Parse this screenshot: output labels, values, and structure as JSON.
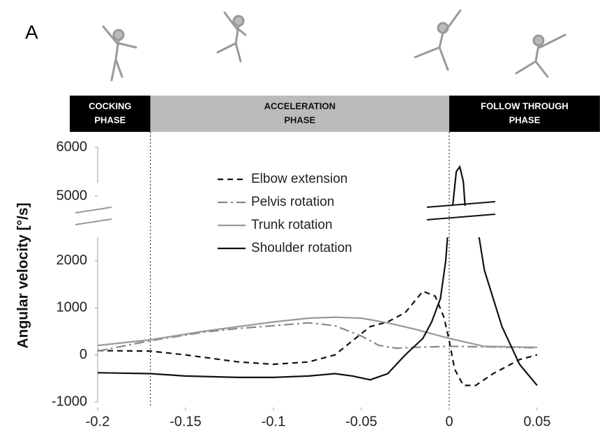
{
  "panel_label": "A",
  "phases": [
    {
      "label": [
        "COCKING",
        "PHASE"
      ],
      "color": "#000000",
      "text_color": "#ffffff"
    },
    {
      "label": [
        "ACCELERATION",
        "PHASE"
      ],
      "color": "#bbbbbb",
      "text_color": "#111111"
    },
    {
      "label": [
        "FOLLOW THROUGH",
        "PHASE"
      ],
      "color": "#000000",
      "text_color": "#ffffff"
    }
  ],
  "chart_data": {
    "type": "line",
    "y_label": "Angular velocity [°/s]",
    "xlim": [
      -0.2,
      0.05
    ],
    "xticks": [
      -0.2,
      -0.15,
      -0.1,
      -0.05,
      0,
      0.05
    ],
    "ylim": [
      -1000,
      6000
    ],
    "y_break": [
      2500,
      4700
    ],
    "yticks": [
      -1000,
      0,
      1000,
      2000,
      5000,
      6000
    ],
    "phase_boundaries": [
      -0.17,
      0
    ],
    "series": [
      {
        "name": "Elbow extension",
        "color": "#111111",
        "dash": "8,6",
        "x": [
          -0.2,
          -0.17,
          -0.15,
          -0.12,
          -0.1,
          -0.08,
          -0.065,
          -0.055,
          -0.045,
          -0.035,
          -0.025,
          -0.015,
          -0.008,
          -0.003,
          0,
          0.003,
          0.008,
          0.015,
          0.025,
          0.04,
          0.05
        ],
        "values": [
          90,
          80,
          0,
          -150,
          -200,
          -150,
          0,
          300,
          600,
          700,
          900,
          1350,
          1250,
          800,
          300,
          -300,
          -650,
          -650,
          -400,
          -100,
          0
        ]
      },
      {
        "name": "Pelvis rotation",
        "color": "#888888",
        "dash": "14,5,3,5",
        "x": [
          -0.2,
          -0.17,
          -0.14,
          -0.12,
          -0.1,
          -0.08,
          -0.065,
          -0.05,
          -0.04,
          -0.03,
          -0.02,
          0,
          0.02,
          0.05
        ],
        "values": [
          80,
          300,
          480,
          560,
          620,
          680,
          620,
          400,
          200,
          140,
          160,
          180,
          170,
          150
        ]
      },
      {
        "name": "Trunk rotation",
        "color": "#999999",
        "dash": "",
        "x": [
          -0.2,
          -0.17,
          -0.14,
          -0.12,
          -0.1,
          -0.08,
          -0.065,
          -0.05,
          -0.035,
          -0.02,
          0,
          0.02,
          0.05
        ],
        "values": [
          200,
          320,
          500,
          600,
          700,
          780,
          800,
          780,
          680,
          550,
          350,
          180,
          160
        ]
      },
      {
        "name": "Shoulder rotation",
        "color": "#111111",
        "dash": "",
        "x": [
          -0.2,
          -0.17,
          -0.15,
          -0.12,
          -0.1,
          -0.08,
          -0.065,
          -0.055,
          -0.045,
          -0.035,
          -0.025,
          -0.015,
          -0.01,
          -0.005,
          -0.002,
          -0.001,
          0.0005,
          0.002,
          0.004,
          0.006,
          0.008,
          0.009,
          0.013,
          0.017,
          0.02,
          0.03,
          0.04,
          0.05
        ],
        "values": [
          -380,
          -400,
          -450,
          -480,
          -480,
          -450,
          -400,
          -450,
          -530,
          -400,
          0,
          350,
          700,
          1200,
          2000,
          2500,
          null,
          4800,
          5500,
          5600,
          5300,
          4800,
          null,
          2500,
          1800,
          600,
          -200,
          -650
        ]
      }
    ]
  }
}
